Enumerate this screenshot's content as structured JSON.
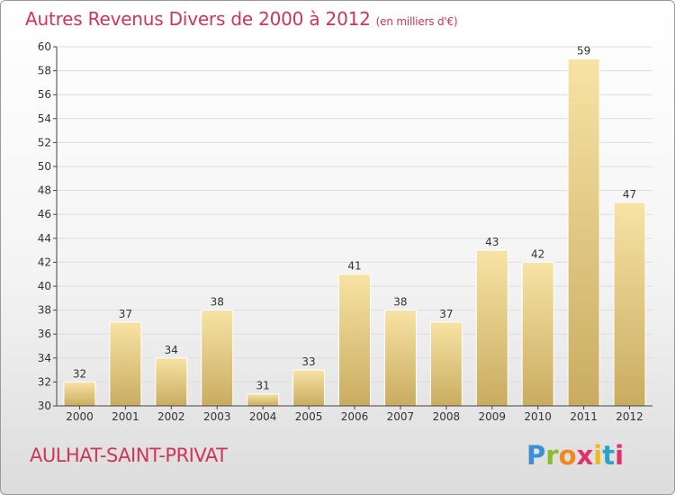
{
  "title": "Autres Revenus Divers de 2000 à 2012",
  "subtitle": "(en milliers d'€)",
  "location": "AULHAT-SAINT-PRIVAT",
  "logo": {
    "text": "Proxiti",
    "colors": [
      "#3b8fd6",
      "#8cbc2a",
      "#f08a1c",
      "#e0306e",
      "#f2b81b",
      "#2ba3c9",
      "#e0306e"
    ]
  },
  "colors": {
    "title": "#d1345b",
    "bar_light": "#f7e3a5",
    "bar_dark": "#c9ac60",
    "grid": "#dddddd",
    "axis": "#444444"
  },
  "chart_data": {
    "type": "bar",
    "categories": [
      "2000",
      "2001",
      "2002",
      "2003",
      "2004",
      "2005",
      "2006",
      "2007",
      "2008",
      "2009",
      "2010",
      "2011",
      "2012"
    ],
    "values": [
      32,
      37,
      34,
      38,
      31,
      33,
      41,
      38,
      37,
      43,
      42,
      59,
      47
    ],
    "title": "Autres Revenus Divers de 2000 à 2012",
    "subtitle": "(en milliers d'€)",
    "xlabel": "",
    "ylabel": "",
    "ylim": [
      30,
      60
    ],
    "yticks": [
      30,
      32,
      34,
      36,
      38,
      40,
      42,
      44,
      46,
      48,
      50,
      52,
      54,
      56,
      58,
      60
    ],
    "grid": true,
    "data_labels": true
  }
}
